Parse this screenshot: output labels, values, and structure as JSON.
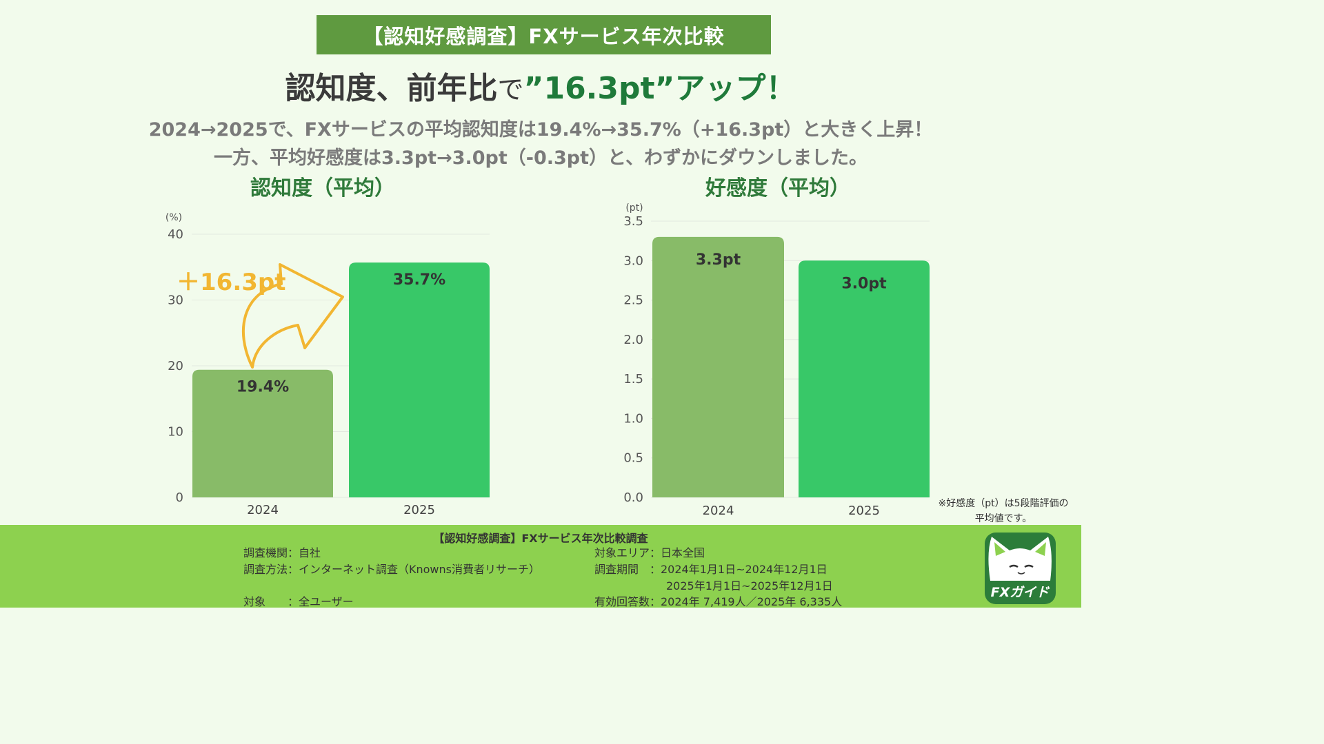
{
  "banner": "【認知好感調査】FXサービス年次比較",
  "headline": {
    "part1": "認知度、前年比",
    "part2": "で",
    "part3": "”16.3pt”アップ！"
  },
  "subtitle": {
    "line1": "2024→2025で、FXサービスの平均認知度は19.4%→35.7%（+16.3pt）と大きく上昇！",
    "line2": "一方、平均好感度は3.3pt→3.0pt（-0.3pt）と、わずかにダウンしました。"
  },
  "chart_data": [
    {
      "type": "bar",
      "title": "認知度（平均）",
      "unit_label": "(%)",
      "categories": [
        "2024",
        "2025"
      ],
      "values": [
        19.4,
        35.7
      ],
      "value_labels": [
        "19.4%",
        "35.7%"
      ],
      "ylim": [
        0,
        40
      ],
      "yticks": [
        0,
        10,
        20,
        30,
        40
      ],
      "ytick_labels": [
        "0",
        "10",
        "20",
        "30",
        "40"
      ],
      "colors": [
        "#88bb68",
        "#38c868"
      ],
      "annotation": "＋16.3pt",
      "annotation_color": "#f2b632"
    },
    {
      "type": "bar",
      "title": "好感度（平均）",
      "unit_label": "(pt)",
      "categories": [
        "2024",
        "2025"
      ],
      "values": [
        3.3,
        3.0
      ],
      "value_labels": [
        "3.3pt",
        "3.0pt"
      ],
      "ylim": [
        0,
        3.5
      ],
      "yticks": [
        0,
        0.5,
        1.0,
        1.5,
        2.0,
        2.5,
        3.0,
        3.5
      ],
      "ytick_labels": [
        "0.0",
        "0.5",
        "1.0",
        "1.5",
        "2.0",
        "2.5",
        "3.0",
        "3.5"
      ],
      "colors": [
        "#88bb68",
        "#38c868"
      ]
    }
  ],
  "footnote": {
    "line1": "※好感度（pt）は5段階評価の",
    "line2": "平均値です。"
  },
  "footer": {
    "title": "【認知好感調査】FXサービス年次比較調査",
    "org": "調査機関：自社",
    "method": "調査方法：インターネット調査（Knowns消費者リサーチ）",
    "target": "対象　　：全ユーザー",
    "area": "対象エリア：日本全国",
    "period_label": "調査期間　：2024年1月1日~2024年12月1日",
    "period2": "2025年1月1日~2025年12月1日",
    "responses": "有効回答数：2024年 7,419人／2025年 6,335人"
  },
  "logo": {
    "text": "FXガイド"
  }
}
